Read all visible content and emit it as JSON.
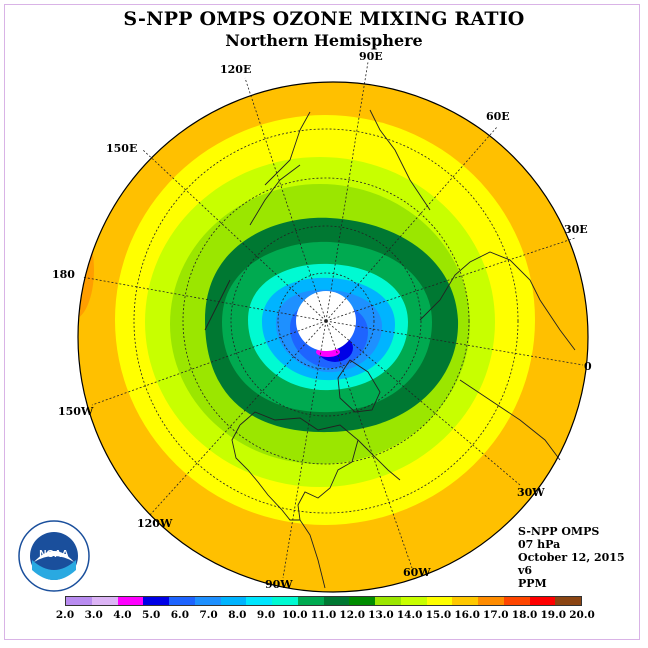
{
  "title": "S-NPP OMPS OZONE MIXING RATIO",
  "subtitle": "Northern Hemisphere",
  "longitude_labels": [
    {
      "text": "90E"
    },
    {
      "text": "60E"
    },
    {
      "text": "30E"
    },
    {
      "text": "0"
    },
    {
      "text": "30W"
    },
    {
      "text": "60W"
    },
    {
      "text": "90W"
    },
    {
      "text": "120W"
    },
    {
      "text": "150W"
    },
    {
      "text": "180"
    },
    {
      "text": "150E"
    },
    {
      "text": "120E"
    }
  ],
  "info": {
    "instrument": "S-NPP OMPS",
    "pressure": "07 hPa",
    "date": "October 12, 2015",
    "version": "v6",
    "units": "PPM"
  },
  "colorbar": {
    "ticks": [
      "2.0",
      "3.0",
      "4.0",
      "5.0",
      "6.0",
      "7.0",
      "8.0",
      "9.0",
      "10.0",
      "11.0",
      "12.0",
      "13.0",
      "14.0",
      "15.0",
      "16.0",
      "17.0",
      "18.0",
      "19.0",
      "20.0"
    ],
    "colors": [
      "#b98cf0",
      "#dcb4f5",
      "#ff00ff",
      "#0000e6",
      "#1e64ff",
      "#1e90ff",
      "#00b4ff",
      "#00e6ff",
      "#00fad2",
      "#00aa50",
      "#007832",
      "#008c00",
      "#9be600",
      "#c8ff00",
      "#ffff00",
      "#ffc800",
      "#ff8c00",
      "#ff4600",
      "#ff0000",
      "#8b4513"
    ]
  },
  "logo": {
    "text": "NOAA"
  }
}
